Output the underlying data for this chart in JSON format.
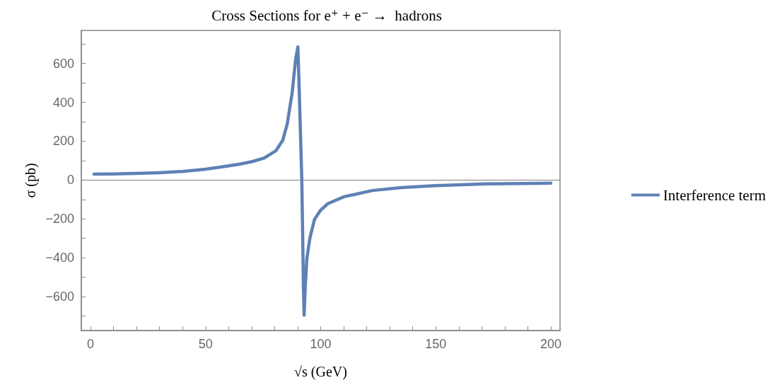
{
  "chart_data": {
    "type": "line",
    "title": "Cross Sections for e⁺ + e⁻ →  hadrons",
    "xlabel": "√s (GeV)",
    "ylabel": "σ (pb)",
    "xlim": [
      -4,
      204
    ],
    "ylim": [
      -775,
      770
    ],
    "xticks": [
      0,
      {
        "value": 10,
        "label": null
      },
      {
        "value": 20,
        "label": null
      },
      {
        "value": 30,
        "label": null
      },
      {
        "value": 40,
        "label": null
      },
      50,
      {
        "value": 60,
        "label": null
      },
      {
        "value": 70,
        "label": null
      },
      {
        "value": 80,
        "label": null
      },
      {
        "value": 90,
        "label": null
      },
      100,
      {
        "value": 110,
        "label": null
      },
      {
        "value": 120,
        "label": null
      },
      {
        "value": 130,
        "label": null
      },
      {
        "value": 140,
        "label": null
      },
      150,
      {
        "value": 160,
        "label": null
      },
      {
        "value": 170,
        "label": null
      },
      {
        "value": 180,
        "label": null
      },
      {
        "value": 190,
        "label": null
      },
      200
    ],
    "yticks": [
      {
        "value": -700,
        "label": null
      },
      {
        "value": -600,
        "label": "−600"
      },
      {
        "value": -500,
        "label": null
      },
      {
        "value": -400,
        "label": "−400"
      },
      {
        "value": -300,
        "label": null
      },
      {
        "value": -200,
        "label": "−200"
      },
      {
        "value": -100,
        "label": null
      },
      0,
      {
        "value": 100,
        "label": null
      },
      200,
      {
        "value": 300,
        "label": null
      },
      400,
      {
        "value": 500,
        "label": null
      },
      600,
      {
        "value": 700,
        "label": null
      }
    ],
    "grid": false,
    "legend": "right",
    "marker": "none",
    "line_style": "solid",
    "ref_lines": [
      {
        "axis": "y",
        "value": 0,
        "label": null,
        "color": "#808080"
      }
    ],
    "series": [
      {
        "name": "Interference term",
        "color": "#5e81b5",
        "x": [
          1.5,
          10,
          19.7,
          30,
          40,
          50.1,
          60.2,
          65,
          70.3,
          75.4,
          80.5,
          83.5,
          85.5,
          87.6,
          89.1,
          90.1,
          90.6,
          91.2,
          91.8,
          92.2,
          92.5,
          92.8,
          93.3,
          94,
          95.3,
          97.3,
          100,
          103.1,
          110.2,
          122.6,
          135.1,
          150,
          172.4,
          200
        ],
        "values": [
          30,
          31,
          34,
          38,
          44,
          56,
          73,
          82,
          95,
          113,
          150,
          204,
          290,
          448,
          620,
          685,
          496,
          250,
          0,
          -300,
          -550,
          -696,
          -550,
          -404,
          -300,
          -203,
          -155,
          -122,
          -86,
          -54,
          -39,
          -29,
          -20,
          -16
        ]
      }
    ]
  }
}
